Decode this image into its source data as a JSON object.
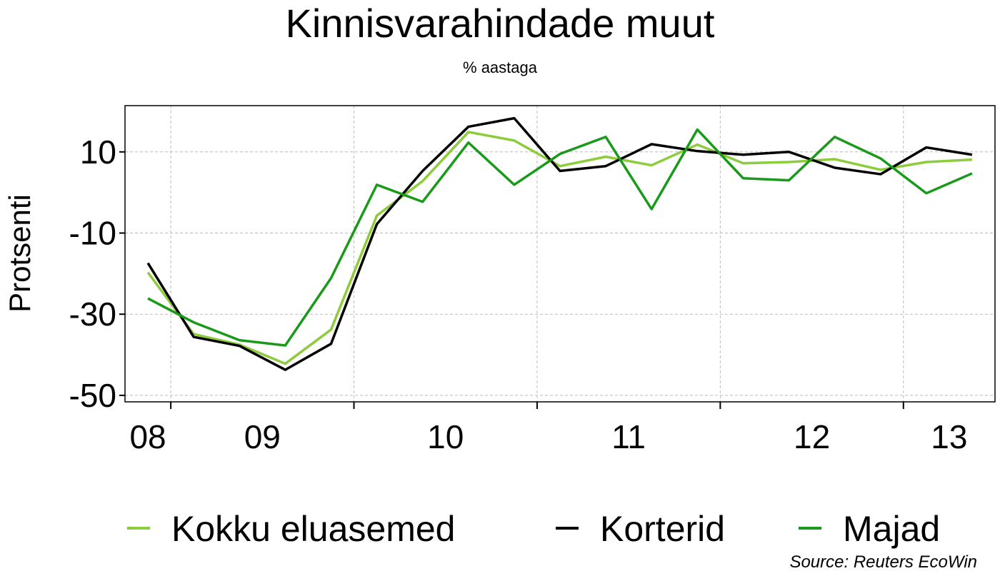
{
  "chart_data": {
    "type": "line",
    "title": "Kinnisvarahindade muut",
    "subtitle": "% aastaga",
    "y_label": "Protsenti",
    "source": "Source: Reuters EcoWin",
    "x": [
      2008.875,
      2009.125,
      2009.375,
      2009.625,
      2009.875,
      2010.125,
      2010.375,
      2010.625,
      2010.875,
      2011.125,
      2011.375,
      2011.625,
      2011.875,
      2012.125,
      2012.375,
      2012.625,
      2012.875,
      2013.125,
      2013.375
    ],
    "series": [
      {
        "name": "Kokku eluasemed",
        "color": "#8dcc3c",
        "values": [
          -19.7,
          -34.9,
          -37.5,
          -42.2,
          -33.8,
          -5.7,
          2.8,
          14.9,
          12.8,
          6.5,
          8.8,
          6.7,
          11.8,
          7.2,
          7.5,
          8.2,
          5.6,
          7.5,
          8.1
        ]
      },
      {
        "name": "Korterid",
        "color": "#000000",
        "values": [
          -17.4,
          -35.6,
          -37.8,
          -43.7,
          -37.3,
          -7.8,
          5.3,
          16.2,
          18.3,
          5.3,
          6.5,
          11.9,
          10.2,
          9.3,
          10.0,
          6.1,
          4.5,
          11.1,
          9.3
        ]
      },
      {
        "name": "Majad",
        "color": "#1a9a1a",
        "values": [
          -26.1,
          -32.0,
          -36.4,
          -37.7,
          -21.1,
          1.9,
          -2.3,
          12.3,
          1.9,
          9.5,
          13.7,
          -4.1,
          15.5,
          3.5,
          3.0,
          13.7,
          8.4,
          -0.2,
          4.7
        ]
      }
    ],
    "xlim": [
      2008.75,
      2013.5
    ],
    "xticks": [
      2009,
      2010,
      2011,
      2012,
      2013
    ],
    "xtick_labels": [
      {
        "value": 2008.875,
        "label": "08"
      },
      {
        "value": 2009.5,
        "label": "09"
      },
      {
        "value": 2010.5,
        "label": "10"
      },
      {
        "value": 2011.5,
        "label": "11"
      },
      {
        "value": 2012.5,
        "label": "12"
      },
      {
        "value": 2013.25,
        "label": "13"
      }
    ],
    "ylim": [
      -51.6,
      21.4
    ],
    "yticks": [
      10,
      -10,
      -30,
      -50
    ],
    "grid": true,
    "legend": "bottom"
  }
}
